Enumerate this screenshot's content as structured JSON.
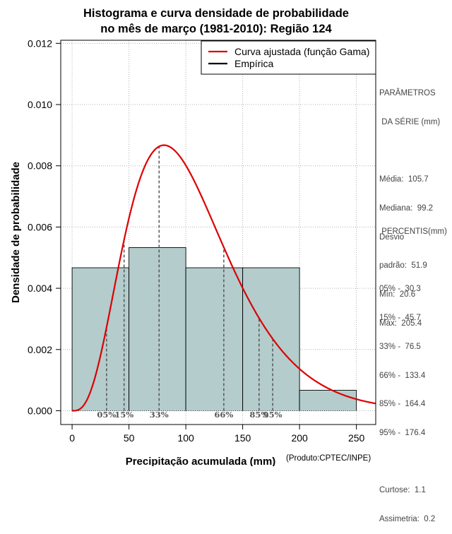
{
  "chart_data": {
    "type": "bar",
    "title": [
      "Histograma e curva densidade de probabilidade",
      "no mês de março (1981-2010): Região 124"
    ],
    "xlabel": "Precipitação acumulada (mm)",
    "ylabel": "Densidade de probabilidade",
    "credit": "(Produto:CPTEC/INPE)",
    "xlim": [
      -10,
      267
    ],
    "ylim": [
      -0.00045,
      0.0121
    ],
    "x_ticks": [
      0,
      50,
      100,
      150,
      200,
      250
    ],
    "y_ticks": [
      0.0,
      0.002,
      0.004,
      0.006,
      0.008,
      0.01,
      0.012
    ],
    "y_tick_labels": [
      "0.000",
      "0.002",
      "0.004",
      "0.006",
      "0.008",
      "0.010",
      "0.012"
    ],
    "grid": true,
    "bins": [
      {
        "from": 0,
        "to": 50,
        "density": 0.00467
      },
      {
        "from": 50,
        "to": 100,
        "density": 0.00533
      },
      {
        "from": 100,
        "to": 150,
        "density": 0.00467
      },
      {
        "from": 150,
        "to": 200,
        "density": 0.00467
      },
      {
        "from": 200,
        "to": 250,
        "density": 0.00067
      }
    ],
    "bar_color": "#b4cccc",
    "gamma_fit": {
      "shape": 4.25,
      "scale": 24.87,
      "color": "#dd0000"
    },
    "percentile_markers": [
      {
        "label": "05%",
        "x": 30.3
      },
      {
        "label": "15%",
        "x": 45.7
      },
      {
        "label": "33%",
        "x": 76.5
      },
      {
        "label": "66%",
        "x": 133.4
      },
      {
        "label": "85%",
        "x": 164.4
      },
      {
        "label": "95%",
        "x": 176.4
      }
    ],
    "legend": {
      "position": "top-right",
      "entries": [
        {
          "label": "Curva ajustada (função Gama)",
          "color": "#dd0000"
        },
        {
          "label": "Empírica",
          "color": "#000000"
        }
      ]
    }
  },
  "stats": {
    "header": [
      "PARÂMETROS",
      " DA SÉRIE (mm)"
    ],
    "lines": [
      "Média:  105.7",
      "Mediana:  99.2",
      "Desvio",
      "padrão:  51.9",
      "Mín:  20.6",
      "Máx:  205.4"
    ]
  },
  "percentis": {
    "header": " PERCENTIS(mm)",
    "lines": [
      "05% -  30.3",
      "15% -  45.7",
      "33% -  76.5",
      "66% -  133.4",
      "85% -  164.4",
      "95% -  176.4"
    ]
  },
  "shape": {
    "lines": [
      "Curtose:  1.1",
      "Assimetria:  0.2"
    ]
  }
}
